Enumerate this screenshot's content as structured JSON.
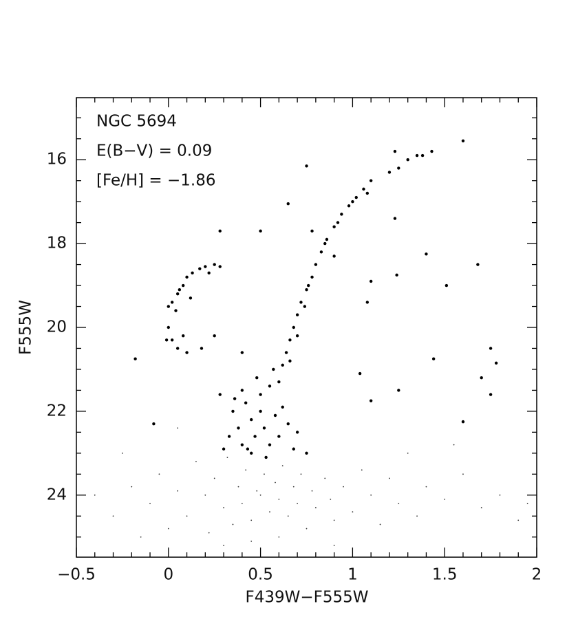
{
  "chart_data": {
    "type": "scatter",
    "xlabel": "F439W−F555W",
    "ylabel": "F555W",
    "annotations": [
      "NGC 5694",
      "E(B−V) = 0.09",
      "[Fe/H] = −1.86"
    ],
    "xlim": [
      -0.5,
      2
    ],
    "ylim": [
      25.48,
      14.52
    ],
    "xticks": [
      {
        "value": -0.5,
        "label": "−0.5"
      },
      0,
      0.5,
      1,
      1.5,
      2
    ],
    "yticks": [
      16,
      18,
      20,
      22,
      24
    ],
    "xminorticks": [
      -0.4,
      -0.3,
      -0.2,
      -0.1,
      0.1,
      0.2,
      0.3,
      0.4,
      0.6,
      0.7,
      0.8,
      0.9,
      1.1,
      1.2,
      1.3,
      1.4,
      1.6,
      1.7,
      1.8,
      1.9
    ],
    "yminorticks": [
      15,
      15.5,
      16.5,
      17,
      17.5,
      18.5,
      19,
      19.5,
      20.5,
      21,
      21.5,
      22.5,
      23,
      23.5,
      24.5,
      25
    ],
    "series": [
      {
        "color": "#000000",
        "x": [
          0.6,
          0.62,
          0.64,
          0.66,
          0.68,
          0.7,
          0.72,
          0.75,
          0.78,
          0.8,
          0.83,
          0.86,
          0.9,
          0.94,
          0.98,
          1.02,
          1.06,
          1.1,
          1.2,
          1.3,
          1.38,
          1.43,
          1.6,
          0.78,
          0.92,
          0.85,
          0.74,
          0.7,
          0.66,
          0.76,
          0.9,
          1.0,
          1.08,
          1.25,
          1.35,
          0,
          0.02,
          0.05,
          0.08,
          0.1,
          0.13,
          0.17,
          0.2,
          0.25,
          0.28,
          0.04,
          0.06,
          0.0,
          0.02,
          0.05,
          0.08,
          0.1,
          0.12,
          0.22,
          -0.01,
          0.35,
          0.38,
          0.4,
          0.42,
          0.45,
          0.47,
          0.5,
          0.5,
          0.52,
          0.55,
          0.55,
          0.58,
          0.6,
          0.62,
          0.65,
          0.68,
          0.45,
          0.33,
          0.3,
          0.4,
          0.48,
          0.53,
          0.7,
          0.75,
          0.36,
          0.57,
          0.28,
          0.43,
          -0.18,
          0.75,
          0.65,
          1.23,
          1.23,
          1.4,
          1.51,
          1.68,
          1.75,
          1.78,
          1.7,
          1.75,
          1.6,
          1.24,
          1.1,
          1.08,
          1.44,
          1.25,
          1.04,
          1.1,
          0.28,
          0.5,
          0.25,
          -0.08,
          0.18,
          0.4
        ],
        "y": [
          21.3,
          20.9,
          20.6,
          20.3,
          20.0,
          19.7,
          19.4,
          19.1,
          18.8,
          18.5,
          18.2,
          17.9,
          17.6,
          17.3,
          17.1,
          16.9,
          16.7,
          16.5,
          16.3,
          16.0,
          15.9,
          15.8,
          15.55,
          17.7,
          17.5,
          18.0,
          19.5,
          20.2,
          20.8,
          19.0,
          18.3,
          17.0,
          16.8,
          16.2,
          15.9,
          19.5,
          19.4,
          19.2,
          19.0,
          18.8,
          18.7,
          18.6,
          18.55,
          18.5,
          18.55,
          19.6,
          19.1,
          20.0,
          20.3,
          20.5,
          20.2,
          20.6,
          19.3,
          18.7,
          20.3,
          22.0,
          22.4,
          22.8,
          21.8,
          22.2,
          22.6,
          21.6,
          22.0,
          22.4,
          22.8,
          21.4,
          22.1,
          22.6,
          21.9,
          22.3,
          22.9,
          23.0,
          22.6,
          22.9,
          21.5,
          21.2,
          23.1,
          22.5,
          23.0,
          21.7,
          21.0,
          21.6,
          22.9,
          20.75,
          16.15,
          17.05,
          15.8,
          17.4,
          18.25,
          19.0,
          18.5,
          20.5,
          20.85,
          21.2,
          21.6,
          22.25,
          18.75,
          18.9,
          19.4,
          20.75,
          21.5,
          21.1,
          21.75,
          17.7,
          17.7,
          20.2,
          22.3,
          20.5,
          20.6
        ]
      },
      {
        "color": "#333333",
        "x": [
          -0.3,
          -0.2,
          -0.15,
          -0.1,
          -0.05,
          0.0,
          0.05,
          0.1,
          0.15,
          0.2,
          0.22,
          0.25,
          0.3,
          0.32,
          0.35,
          0.38,
          0.4,
          0.42,
          0.45,
          0.48,
          0.5,
          0.52,
          0.55,
          0.58,
          0.6,
          0.62,
          0.65,
          0.68,
          0.7,
          0.72,
          0.75,
          0.78,
          0.8,
          0.85,
          0.88,
          0.9,
          0.95,
          1.0,
          1.05,
          1.1,
          1.15,
          1.2,
          1.25,
          1.3,
          1.35,
          1.4,
          1.5,
          1.6,
          1.7,
          1.8,
          1.9,
          0.45,
          0.6,
          0.3,
          0.9,
          -0.25,
          1.55,
          0.05,
          -0.4,
          1.95
        ],
        "y": [
          24.5,
          23.8,
          25.0,
          24.2,
          23.5,
          24.8,
          23.9,
          24.5,
          23.2,
          24.0,
          24.9,
          23.6,
          24.3,
          23.1,
          24.7,
          23.8,
          24.2,
          23.4,
          24.6,
          23.9,
          24.0,
          23.5,
          24.4,
          23.7,
          24.1,
          23.3,
          24.5,
          23.8,
          24.2,
          23.5,
          24.8,
          23.9,
          24.3,
          23.6,
          24.1,
          24.6,
          23.8,
          24.4,
          23.4,
          24.0,
          24.7,
          23.6,
          24.2,
          23.0,
          24.5,
          23.8,
          24.1,
          23.5,
          24.3,
          24.0,
          24.6,
          25.1,
          25.0,
          25.2,
          25.2,
          23.0,
          22.8,
          22.4,
          24.0,
          24.2
        ]
      }
    ]
  }
}
